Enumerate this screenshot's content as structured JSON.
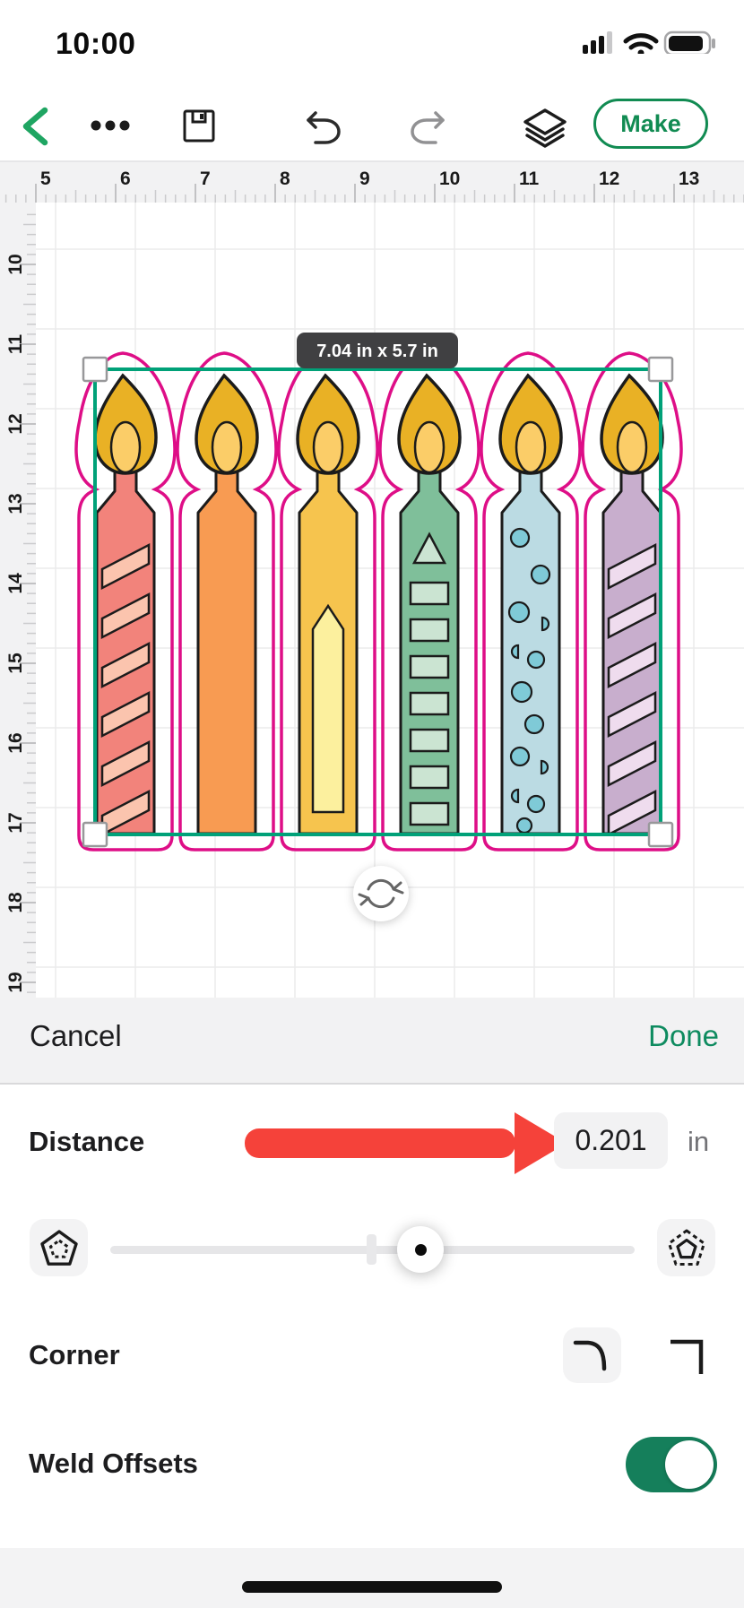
{
  "status_bar": {
    "time": "10:00"
  },
  "toolbar": {
    "make_label": "Make"
  },
  "canvas": {
    "size_label": "7.04 in x 5.7 in",
    "h_ruler": [
      "5",
      "6",
      "7",
      "8",
      "9",
      "10",
      "11",
      "12",
      "13"
    ],
    "v_ruler": [
      "10",
      "11",
      "12",
      "13",
      "14",
      "15",
      "16",
      "17",
      "18",
      "19"
    ],
    "selection_color": "#00A178",
    "offset_color": "#DE0E87",
    "flame": {
      "outer": "#E9B125",
      "inner": "#FBCD68",
      "outline": "#1b1b1b"
    },
    "candles": [
      {
        "name": "stripe-salmon",
        "pattern": "stripes",
        "body": "#F2837B",
        "accent": "#FBC4AE"
      },
      {
        "name": "solid-orange",
        "pattern": "solid",
        "body": "#F89B52",
        "accent": "#F89B52"
      },
      {
        "name": "panel-yellow",
        "pattern": "panel",
        "body": "#F6C44E",
        "accent": "#FCF09E"
      },
      {
        "name": "blocks-green",
        "pattern": "blocks",
        "body": "#7FBF9A",
        "accent": "#CBE4D2"
      },
      {
        "name": "dots-blue",
        "pattern": "dots",
        "body": "#BBDBE3",
        "accent": "#7FCAD7"
      },
      {
        "name": "stripe-lavender",
        "pattern": "stripes",
        "body": "#C8AECD",
        "accent": "#EFDCEE"
      }
    ]
  },
  "action_bar": {
    "cancel": "Cancel",
    "done": "Done"
  },
  "offset_panel": {
    "distance_label": "Distance",
    "distance_value": "0.201",
    "distance_unit": "in",
    "corner_label": "Corner",
    "weld_label": "Weld Offsets",
    "weld_on": true,
    "arrow_color": "#F5423A"
  }
}
